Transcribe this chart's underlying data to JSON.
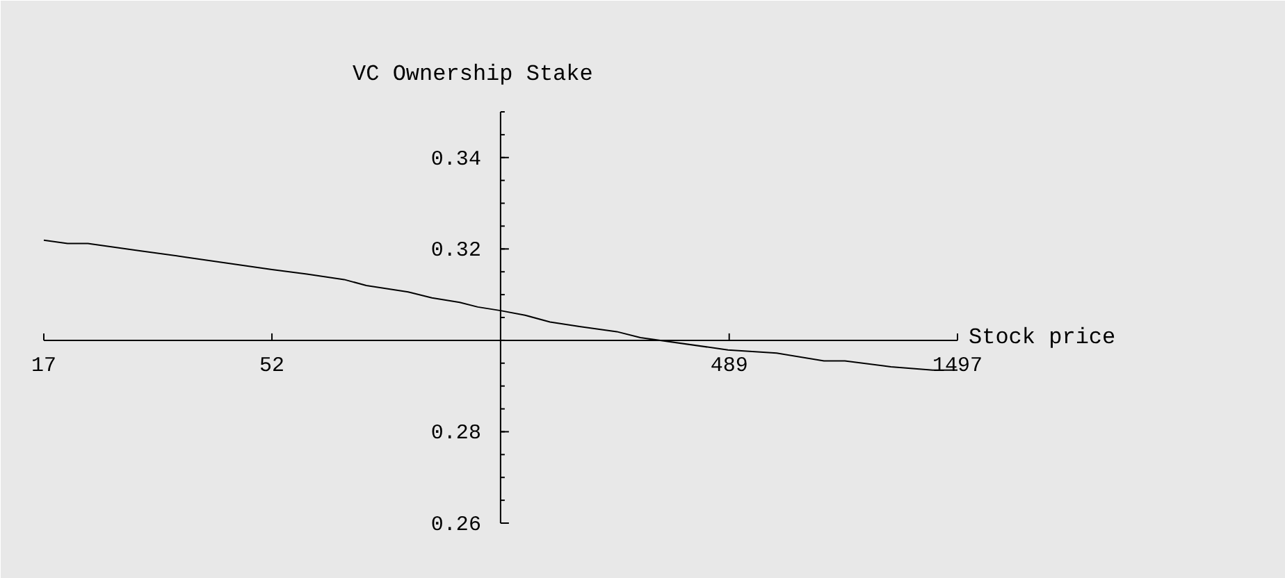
{
  "chart_data": {
    "type": "line",
    "title": "VC Ownership Stake",
    "xlabel": "Stock price",
    "log": "x",
    "xlim": [
      17,
      1497
    ],
    "xticks": [
      17,
      52,
      489,
      1497
    ],
    "ylim": [
      0.26,
      0.35
    ],
    "yticks": [
      0.26,
      0.28,
      0.32,
      0.34
    ],
    "series": [
      {
        "color": "#000000",
        "x": [
          17,
          19.1,
          21.1,
          27.2,
          34.1,
          52,
          61.7,
          74.1,
          82.6,
          101.4,
          113.9,
          130.5,
          142.6,
          159.5,
          179.8,
          203.2,
          236.1,
          281.9,
          316.5,
          486,
          617,
          778,
          862,
          1080,
          1325,
          1497
        ],
        "values": [
          0.3219,
          0.3212,
          0.3212,
          0.3196,
          0.3182,
          0.3155,
          0.3145,
          0.3133,
          0.312,
          0.3106,
          0.3093,
          0.3083,
          0.3073,
          0.3065,
          0.3055,
          0.304,
          0.303,
          0.3019,
          0.3006,
          0.2979,
          0.2972,
          0.2955,
          0.2955,
          0.2942,
          0.2935,
          0.2935
        ]
      }
    ]
  }
}
